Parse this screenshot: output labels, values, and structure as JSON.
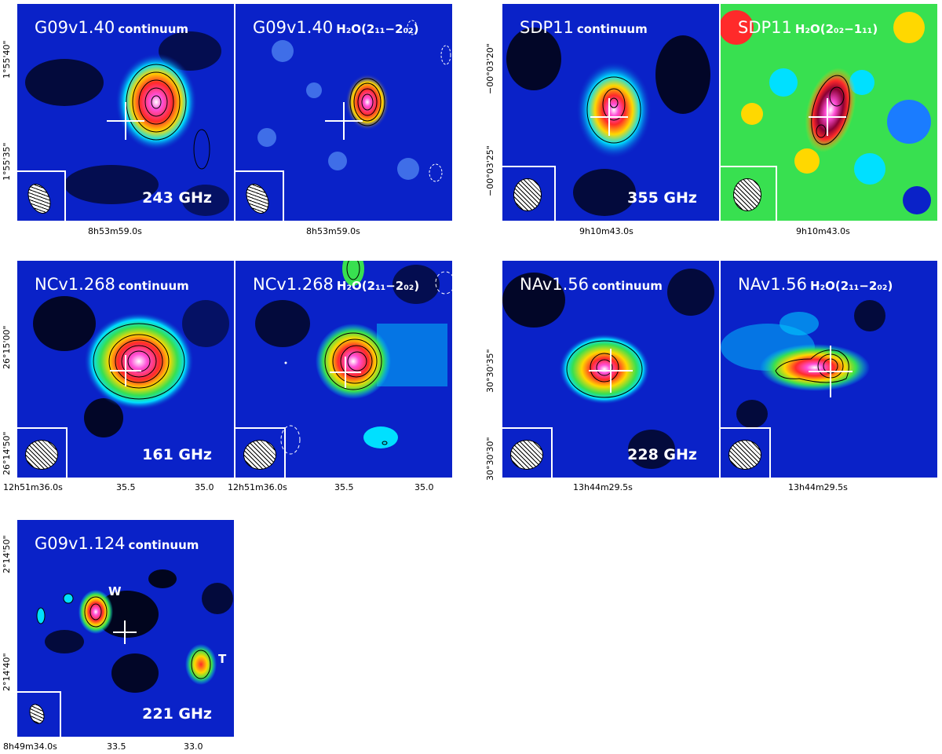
{
  "panels": {
    "g09v140_cont": {
      "name": "G09v1.40",
      "sub": "continuum",
      "freq": "243 GHz"
    },
    "g09v140_h2o": {
      "name": "G09v1.40",
      "sub": "H₂O(2₁₁−2₀₂)"
    },
    "sdp11_cont": {
      "name": "SDP11",
      "sub": "continuum",
      "freq": "355 GHz"
    },
    "sdp11_h2o": {
      "name": "SDP11",
      "sub": "H₂O(2₀₂−1₁₁)"
    },
    "ncv1268_cont": {
      "name": "NCv1.268",
      "sub": "continuum",
      "freq": "161 GHz"
    },
    "ncv1268_h2o": {
      "name": "NCv1.268",
      "sub": "H₂O(2₁₁−2₀₂)"
    },
    "nav156_cont": {
      "name": "NAv1.56",
      "sub": "continuum",
      "freq": "228 GHz"
    },
    "nav156_h2o": {
      "name": "NAv1.56",
      "sub": "H₂O(2₁₁−2₀₂)"
    },
    "g09v1124_cont": {
      "name": "G09v1.124",
      "sub": "continuum",
      "freq": "221 GHz",
      "label_w": "W",
      "label_t": "T"
    }
  },
  "axes": {
    "g09v140": {
      "y1": "1°55'40\"",
      "y2": "1°55'35\"",
      "x1": "8h53m59.0s",
      "x2": "8h53m59.0s"
    },
    "sdp11": {
      "y1": "−00°03'20\"",
      "y2": "−00°03'25\"",
      "x1": "9h10m43.0s",
      "x2": "9h10m43.0s"
    },
    "ncv1268": {
      "y1": "26°15'00\"",
      "y2": "26°14'50\"",
      "x1": "12h51m36.0s",
      "x2": "35.5",
      "x3": "35.0",
      "x4": "12h51m36.0s",
      "x5": "35.5",
      "x6": "35.0"
    },
    "nav156": {
      "y1": "30°30'35\"",
      "y2": "30°30'30\"",
      "x1": "13h44m29.5s",
      "x2": "13h44m29.5s"
    },
    "g09v1124": {
      "y1": "2°14'50\"",
      "y2": "2°14'40\"",
      "x1": "8h49m34.0s",
      "x2": "33.5",
      "x3": "33.0"
    }
  },
  "colors": {
    "background": "#0a22c8",
    "peak": "#ff4fd8",
    "mid": "#ff2a2a",
    "low": "#00e0ff"
  }
}
